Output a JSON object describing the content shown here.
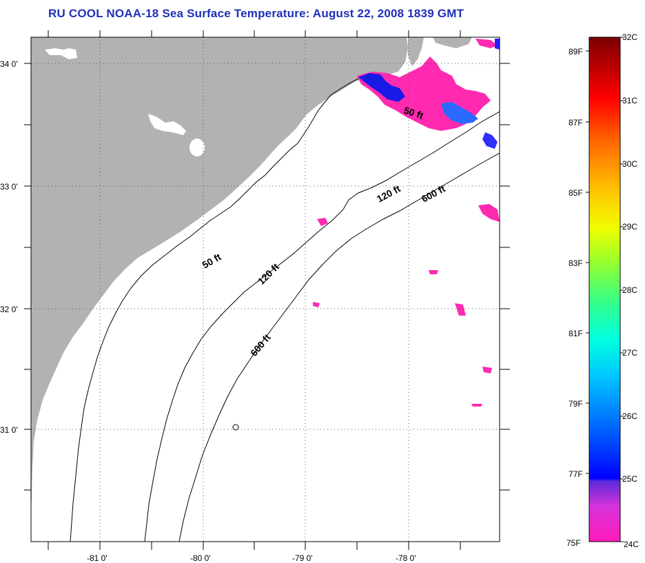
{
  "title": "RU COOL  NOAA-18  Sea Surface Temperature:  August 22, 2008 1839 GMT",
  "map": {
    "lat_labels": [
      "34 0'",
      "33 0'",
      "32 0'",
      "31 0'"
    ],
    "lon_labels": [
      "-81 0'",
      "-80 0'",
      "-79 0'",
      "-78 0'"
    ],
    "contours": {
      "c50_a": "50 ft",
      "c50_b": "50 ft",
      "c120_a": "120 ft",
      "c120_b": "120 ft",
      "c600_a": "600 ft",
      "c600_b": "600 ft"
    },
    "colors": {
      "land": "#b2b2b2",
      "ocean": "#ffffff",
      "title": "#1f2fb8"
    }
  },
  "colorbar": {
    "f_labels": [
      "89F",
      "87F",
      "85F",
      "83F",
      "81F",
      "79F",
      "77F",
      "75F"
    ],
    "c_labels": [
      "32C",
      "31C",
      "30C",
      "29C",
      "28C",
      "27C",
      "26C",
      "25C",
      "24C"
    ]
  }
}
